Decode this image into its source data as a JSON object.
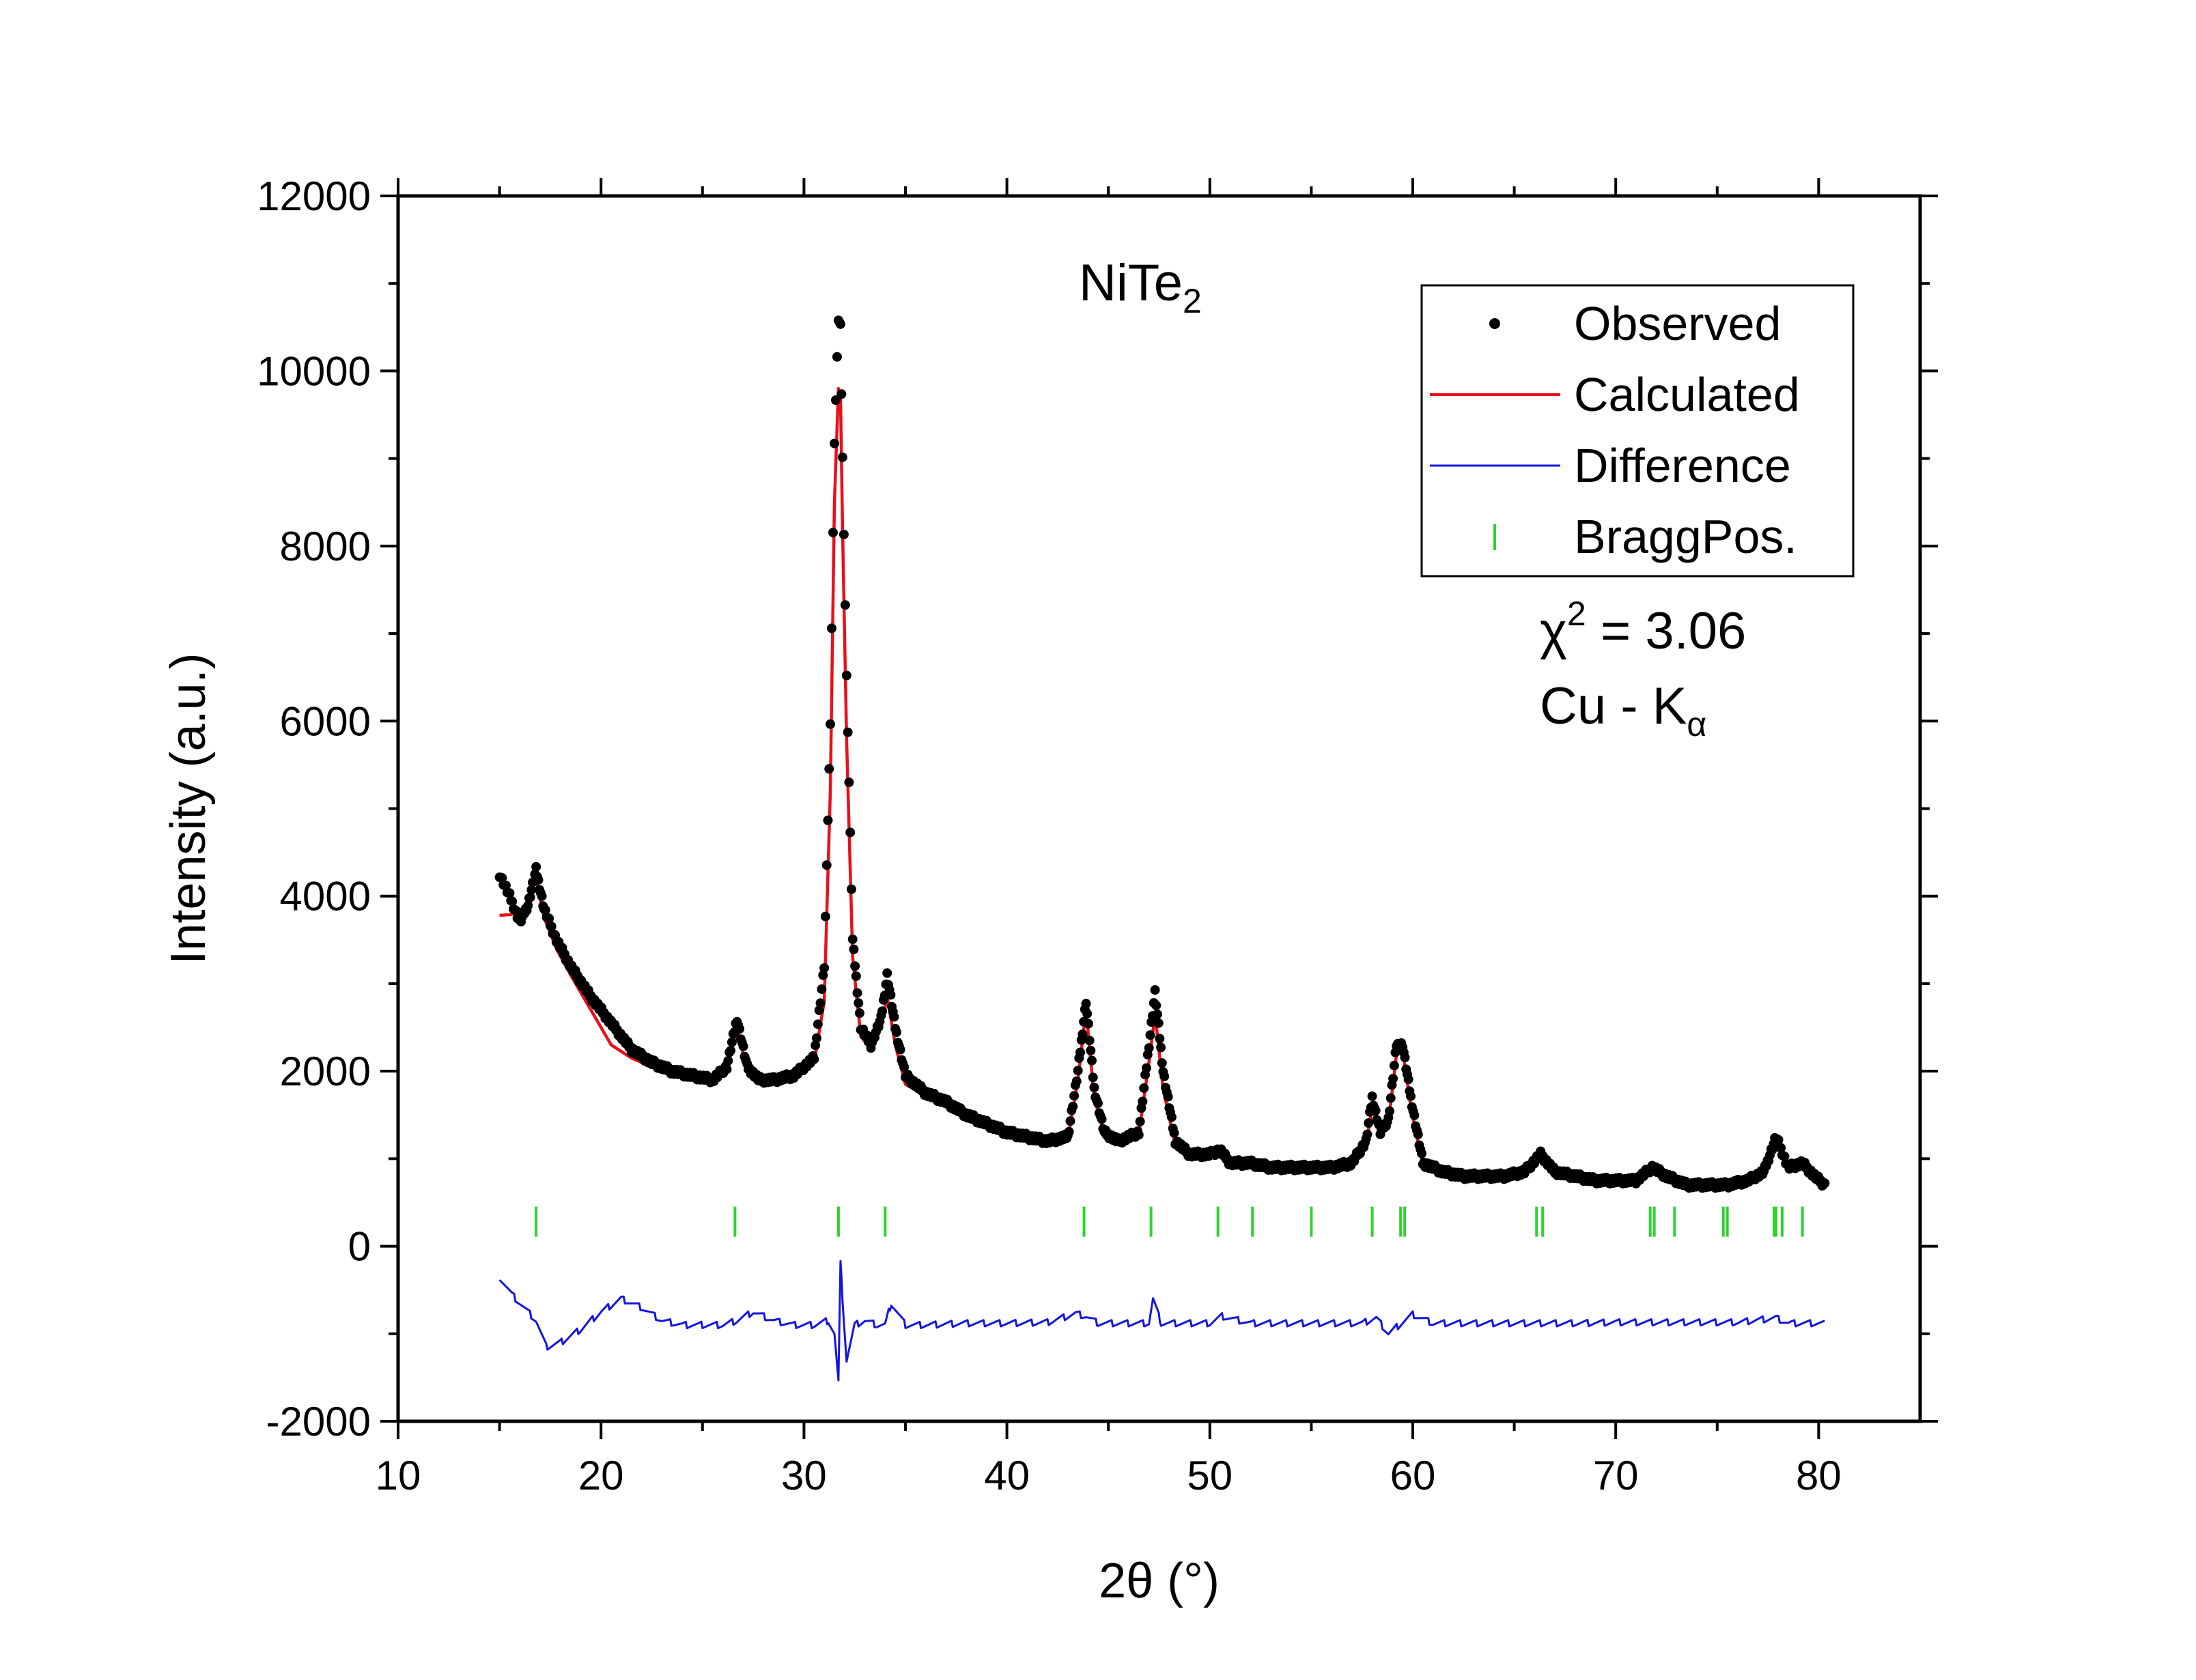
{
  "chart_data": {
    "type": "line",
    "title": "",
    "xlabel": "2θ (°)",
    "ylabel": "Intensity (a.u.)",
    "xlim": [
      10,
      85
    ],
    "ylim": [
      -2000,
      12000
    ],
    "xticks": [
      10,
      20,
      30,
      40,
      50,
      60,
      70,
      80
    ],
    "yticks": [
      -2000,
      0,
      2000,
      4000,
      6000,
      8000,
      10000,
      12000
    ],
    "grid": false,
    "legend_position": "top-right",
    "annotations": {
      "compound": {
        "main": "NiTe",
        "sub": "2"
      },
      "chi": {
        "symbol": "χ",
        "sup": "2",
        "rest": " = 3.06"
      },
      "source": {
        "main": "Cu - K",
        "sub": "α"
      }
    },
    "series": [
      {
        "name": "Observed",
        "kind": "scatter",
        "color": "#000000",
        "x": [
          15.0,
          15.5,
          16.0,
          16.4,
          16.8,
          17.2,
          17.8,
          18.5,
          19.5,
          20.5,
          21.5,
          22.5,
          23.5,
          24.5,
          25.5,
          26.2,
          26.7,
          27.2,
          27.8,
          28.5,
          29.5,
          30.5,
          31.0,
          31.3,
          31.5,
          31.7,
          31.8,
          31.9,
          32.1,
          32.4,
          32.8,
          33.3,
          33.8,
          34.1,
          34.5,
          35.0,
          36.0,
          37.0,
          38.0,
          39.0,
          40.0,
          41.0,
          42.0,
          43.0,
          43.5,
          43.9,
          44.3,
          44.8,
          45.5,
          46.5,
          47.0,
          47.3,
          47.7,
          48.3,
          49.0,
          50.0,
          50.5,
          51.0,
          52.0,
          53.0,
          54.0,
          55.0,
          56.0,
          57.0,
          57.7,
          58.0,
          58.4,
          58.8,
          59.2,
          59.5,
          59.9,
          60.5,
          61.5,
          62.5,
          63.5,
          64.5,
          65.5,
          66.3,
          67.0,
          68.0,
          69.0,
          70.0,
          71.0,
          71.8,
          72.5,
          73.5,
          74.5,
          75.5,
          76.5,
          77.3,
          77.9,
          78.5,
          79.2,
          79.8,
          80.3
        ],
        "y": [
          4250,
          4000,
          3700,
          3900,
          4300,
          3850,
          3500,
          3200,
          2850,
          2550,
          2250,
          2100,
          2000,
          1950,
          1900,
          2050,
          2600,
          2050,
          1900,
          1900,
          1950,
          2150,
          3200,
          6000,
          9200,
          10600,
          10500,
          9000,
          6500,
          3500,
          2500,
          2300,
          2600,
          3100,
          2500,
          1950,
          1750,
          1650,
          1500,
          1400,
          1300,
          1250,
          1200,
          1250,
          2000,
          2800,
          1800,
          1300,
          1200,
          1300,
          2300,
          2900,
          2000,
          1200,
          1050,
          1050,
          1100,
          950,
          950,
          900,
          900,
          900,
          900,
          950,
          1200,
          1700,
          1300,
          1450,
          2300,
          2300,
          1700,
          950,
          850,
          800,
          800,
          800,
          850,
          1050,
          850,
          800,
          750,
          750,
          750,
          900,
          800,
          700,
          700,
          700,
          750,
          850,
          1250,
          900,
          950,
          800,
          700
        ]
      },
      {
        "name": "Calculated",
        "kind": "line",
        "color": "#e8101a",
        "x": [
          15.0,
          15.6,
          16.2,
          16.8,
          17.2,
          17.8,
          18.5,
          19.5,
          20.5,
          21.5,
          22.5,
          23.5,
          24.5,
          25.5,
          26.2,
          26.7,
          27.2,
          27.8,
          28.5,
          29.5,
          30.5,
          31.0,
          31.3,
          31.5,
          31.7,
          31.8,
          31.9,
          32.1,
          32.4,
          32.8,
          33.3,
          33.8,
          34.1,
          34.5,
          35.0,
          36.0,
          37.0,
          38.0,
          39.0,
          40.0,
          41.0,
          42.0,
          43.0,
          43.5,
          43.9,
          44.3,
          44.8,
          45.5,
          46.5,
          47.0,
          47.3,
          47.7,
          48.3,
          49.0,
          50.0,
          50.5,
          51.0,
          52.0,
          53.0,
          54.0,
          55.0,
          56.0,
          57.0,
          57.7,
          58.0,
          58.4,
          58.8,
          59.2,
          59.5,
          59.9,
          60.5,
          61.5,
          62.5,
          63.5,
          64.5,
          65.5,
          66.3,
          67.0,
          68.0,
          69.0,
          70.0,
          71.0,
          71.8,
          72.5,
          73.5,
          74.5,
          75.5,
          76.5,
          77.3,
          77.9,
          78.5,
          79.2,
          79.8,
          80.3
        ],
        "y": [
          3780,
          3790,
          3850,
          4200,
          3750,
          3400,
          3100,
          2700,
          2300,
          2150,
          2050,
          2000,
          1950,
          1920,
          2000,
          2500,
          2000,
          1850,
          1880,
          1950,
          2100,
          2800,
          5200,
          8500,
          9800,
          9700,
          8200,
          5800,
          3300,
          2400,
          2250,
          2500,
          2850,
          2300,
          1850,
          1720,
          1620,
          1480,
          1380,
          1290,
          1240,
          1200,
          1230,
          1900,
          2700,
          1700,
          1270,
          1190,
          1280,
          2100,
          2650,
          1800,
          1150,
          1020,
          1020,
          1060,
          940,
          930,
          890,
          880,
          880,
          880,
          930,
          1150,
          1600,
          1250,
          1400,
          2200,
          2250,
          1600,
          920,
          830,
          790,
          790,
          790,
          830,
          1000,
          830,
          780,
          740,
          740,
          740,
          860,
          780,
          690,
          690,
          690,
          730,
          830,
          1180,
          880,
          920,
          780,
          700
        ]
      },
      {
        "name": "Difference",
        "kind": "line",
        "color": "#1414e0",
        "x": [
          15.0,
          15.6,
          16.2,
          16.8,
          17.3,
          18.0,
          19.0,
          20.0,
          21.0,
          22.0,
          23.0,
          24.0,
          25.0,
          26.0,
          26.7,
          27.5,
          28.5,
          29.5,
          30.5,
          31.2,
          31.5,
          31.7,
          31.8,
          31.9,
          32.1,
          32.5,
          33.0,
          33.6,
          34.0,
          34.3,
          35.0,
          36.0,
          38.0,
          40.0,
          42.0,
          43.4,
          43.9,
          44.5,
          46.0,
          47.0,
          47.2,
          47.6,
          48.5,
          50.0,
          50.6,
          52.0,
          54.0,
          56.0,
          57.5,
          58.2,
          58.8,
          59.5,
          60.0,
          61.0,
          63.0,
          65.0,
          66.5,
          68.0,
          70.0,
          72.0,
          74.0,
          76.0,
          77.9,
          78.5,
          80.3
        ],
        "y": [
          -350,
          -550,
          -700,
          -850,
          -1150,
          -1100,
          -950,
          -750,
          -600,
          -700,
          -850,
          -900,
          -900,
          -900,
          -850,
          -750,
          -850,
          -900,
          -900,
          -850,
          -1000,
          -1550,
          -200,
          -600,
          -1300,
          -900,
          -850,
          -900,
          -900,
          -650,
          -900,
          -900,
          -880,
          -880,
          -870,
          -770,
          -800,
          -880,
          -880,
          -880,
          -600,
          -880,
          -880,
          -880,
          -800,
          -880,
          -880,
          -880,
          -880,
          -820,
          -1000,
          -870,
          -780,
          -880,
          -880,
          -880,
          -880,
          -880,
          -870,
          -870,
          -870,
          -870,
          -820,
          -880,
          -880
        ]
      },
      {
        "name": "BraggPos.",
        "kind": "ticks",
        "color": "#2ed32e",
        "y_level": 280,
        "positions": [
          16.8,
          26.6,
          31.7,
          34.0,
          43.8,
          47.1,
          50.4,
          52.1,
          55.0,
          58.0,
          59.4,
          59.6,
          66.1,
          66.4,
          71.7,
          71.9,
          72.9,
          75.3,
          75.5,
          77.8,
          77.9,
          78.2,
          79.2
        ]
      }
    ]
  }
}
